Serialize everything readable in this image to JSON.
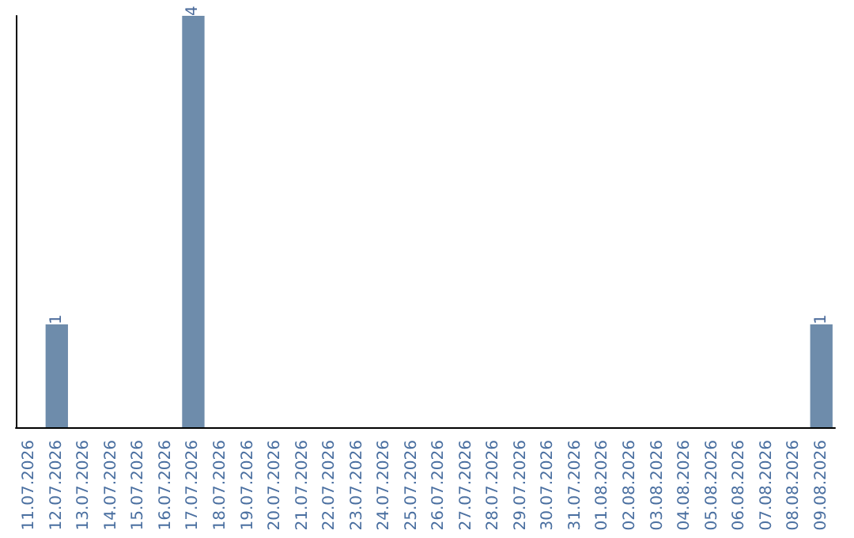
{
  "chart_data": {
    "type": "bar",
    "categories": [
      "11.07.2026",
      "12.07.2026",
      "13.07.2026",
      "14.07.2026",
      "15.07.2026",
      "16.07.2026",
      "17.07.2026",
      "18.07.2026",
      "19.07.2026",
      "20.07.2026",
      "21.07.2026",
      "22.07.2026",
      "23.07.2026",
      "24.07.2026",
      "25.07.2026",
      "26.07.2026",
      "27.07.2026",
      "28.07.2026",
      "29.07.2026",
      "30.07.2026",
      "31.07.2026",
      "01.08.2026",
      "02.08.2026",
      "03.08.2026",
      "04.08.2026",
      "05.08.2026",
      "06.08.2026",
      "07.08.2026",
      "08.08.2026",
      "09.08.2026"
    ],
    "values": [
      0,
      1,
      0,
      0,
      0,
      0,
      4,
      0,
      0,
      0,
      0,
      0,
      0,
      0,
      0,
      0,
      0,
      0,
      0,
      0,
      0,
      0,
      0,
      0,
      0,
      0,
      0,
      0,
      0,
      1
    ],
    "value_labels": [
      null,
      "1",
      null,
      null,
      null,
      null,
      "4",
      null,
      null,
      null,
      null,
      null,
      null,
      null,
      null,
      null,
      null,
      null,
      null,
      null,
      null,
      null,
      null,
      null,
      null,
      null,
      null,
      null,
      null,
      "1"
    ],
    "color": "#6e8cab",
    "tick_labels": "x"
  }
}
